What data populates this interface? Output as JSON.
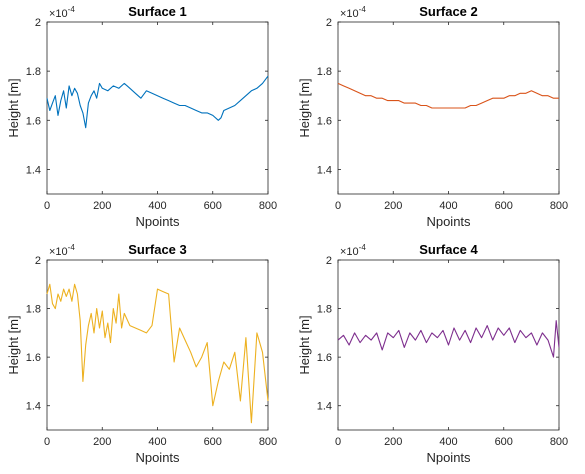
{
  "figure": {
    "tick_label_color": "#262626"
  },
  "chart_data": [
    {
      "type": "line",
      "title": "Surface 1",
      "xlabel": "Npoints",
      "ylabel": "Height [m]",
      "exponent_label": "×10",
      "exponent_power": "-4",
      "xlim": [
        0,
        800
      ],
      "ylim": [
        1.3,
        2.0
      ],
      "xticks": [
        "0",
        "200",
        "400",
        "600",
        "800"
      ],
      "yticks": [
        "1.4",
        "1.6",
        "1.8",
        "2"
      ],
      "ytick_values": [
        1.4,
        1.6,
        1.8,
        2.0
      ],
      "xtick_values": [
        0,
        200,
        400,
        600,
        800
      ],
      "color": "#0072BD",
      "series": [
        {
          "x": [
            0,
            10,
            20,
            30,
            40,
            50,
            60,
            70,
            80,
            90,
            100,
            110,
            120,
            130,
            140,
            150,
            160,
            170,
            180,
            190,
            200,
            220,
            240,
            260,
            280,
            300,
            320,
            340,
            360,
            380,
            400,
            420,
            440,
            460,
            480,
            500,
            520,
            540,
            560,
            580,
            600,
            620,
            630,
            640,
            660,
            680,
            700,
            720,
            740,
            760,
            780,
            800
          ],
          "y": [
            1.69,
            1.64,
            1.67,
            1.7,
            1.62,
            1.68,
            1.72,
            1.65,
            1.74,
            1.7,
            1.73,
            1.71,
            1.66,
            1.63,
            1.57,
            1.67,
            1.7,
            1.72,
            1.69,
            1.75,
            1.73,
            1.72,
            1.74,
            1.73,
            1.75,
            1.73,
            1.71,
            1.69,
            1.72,
            1.71,
            1.7,
            1.69,
            1.68,
            1.67,
            1.66,
            1.66,
            1.65,
            1.64,
            1.63,
            1.63,
            1.62,
            1.6,
            1.61,
            1.64,
            1.65,
            1.66,
            1.68,
            1.7,
            1.72,
            1.73,
            1.75,
            1.78
          ]
        }
      ]
    },
    {
      "type": "line",
      "title": "Surface 2",
      "xlabel": "Npoints",
      "ylabel": "Height [m]",
      "exponent_label": "×10",
      "exponent_power": "-4",
      "xlim": [
        0,
        800
      ],
      "ylim": [
        1.3,
        2.0
      ],
      "xticks": [
        "0",
        "200",
        "400",
        "600",
        "800"
      ],
      "yticks": [
        "1.4",
        "1.6",
        "1.8",
        "2"
      ],
      "ytick_values": [
        1.4,
        1.6,
        1.8,
        2.0
      ],
      "xtick_values": [
        0,
        200,
        400,
        600,
        800
      ],
      "color": "#D95319",
      "series": [
        {
          "x": [
            0,
            20,
            40,
            60,
            80,
            100,
            120,
            140,
            160,
            180,
            200,
            220,
            240,
            260,
            280,
            300,
            320,
            340,
            360,
            380,
            400,
            420,
            440,
            460,
            480,
            500,
            520,
            540,
            560,
            580,
            600,
            620,
            640,
            660,
            680,
            700,
            720,
            740,
            760,
            780,
            800
          ],
          "y": [
            1.75,
            1.74,
            1.73,
            1.72,
            1.71,
            1.7,
            1.7,
            1.69,
            1.69,
            1.68,
            1.68,
            1.68,
            1.67,
            1.67,
            1.67,
            1.66,
            1.66,
            1.65,
            1.65,
            1.65,
            1.65,
            1.65,
            1.65,
            1.65,
            1.66,
            1.66,
            1.67,
            1.68,
            1.69,
            1.69,
            1.69,
            1.7,
            1.7,
            1.71,
            1.71,
            1.72,
            1.71,
            1.7,
            1.7,
            1.69,
            1.69
          ]
        }
      ]
    },
    {
      "type": "line",
      "title": "Surface 3",
      "xlabel": "Npoints",
      "ylabel": "Height [m]",
      "exponent_label": "×10",
      "exponent_power": "-4",
      "xlim": [
        0,
        800
      ],
      "ylim": [
        1.3,
        2.0
      ],
      "xticks": [
        "0",
        "200",
        "400",
        "600",
        "800"
      ],
      "yticks": [
        "1.4",
        "1.6",
        "1.8",
        "2"
      ],
      "ytick_values": [
        1.4,
        1.6,
        1.8,
        2.0
      ],
      "xtick_values": [
        0,
        200,
        400,
        600,
        800
      ],
      "color": "#EDB120",
      "series": [
        {
          "x": [
            0,
            10,
            20,
            30,
            40,
            50,
            60,
            70,
            80,
            90,
            100,
            110,
            120,
            130,
            140,
            150,
            160,
            170,
            180,
            190,
            200,
            210,
            220,
            230,
            240,
            250,
            260,
            270,
            280,
            300,
            320,
            340,
            360,
            380,
            400,
            420,
            440,
            460,
            480,
            500,
            520,
            540,
            560,
            580,
            600,
            620,
            640,
            660,
            680,
            700,
            720,
            740,
            760,
            780,
            800
          ],
          "y": [
            1.86,
            1.9,
            1.82,
            1.8,
            1.86,
            1.83,
            1.88,
            1.85,
            1.88,
            1.83,
            1.9,
            1.86,
            1.75,
            1.5,
            1.65,
            1.73,
            1.78,
            1.7,
            1.8,
            1.72,
            1.79,
            1.68,
            1.74,
            1.66,
            1.8,
            1.74,
            1.86,
            1.72,
            1.78,
            1.73,
            1.72,
            1.71,
            1.7,
            1.73,
            1.88,
            1.87,
            1.86,
            1.58,
            1.72,
            1.67,
            1.62,
            1.56,
            1.6,
            1.66,
            1.4,
            1.5,
            1.58,
            1.55,
            1.62,
            1.42,
            1.68,
            1.33,
            1.7,
            1.62,
            1.42
          ]
        }
      ]
    },
    {
      "type": "line",
      "title": "Surface 4",
      "xlabel": "Npoints",
      "ylabel": "Height [m]",
      "exponent_label": "×10",
      "exponent_power": "-4",
      "xlim": [
        0,
        800
      ],
      "ylim": [
        1.3,
        2.0
      ],
      "xticks": [
        "0",
        "200",
        "400",
        "600",
        "800"
      ],
      "yticks": [
        "1.4",
        "1.6",
        "1.8",
        "2"
      ],
      "ytick_values": [
        1.4,
        1.6,
        1.8,
        2.0
      ],
      "xtick_values": [
        0,
        200,
        400,
        600,
        800
      ],
      "color": "#7E2F8E",
      "series": [
        {
          "x": [
            0,
            20,
            40,
            60,
            80,
            100,
            120,
            140,
            160,
            180,
            200,
            220,
            240,
            260,
            280,
            300,
            320,
            340,
            360,
            380,
            400,
            420,
            440,
            460,
            480,
            500,
            520,
            540,
            560,
            580,
            600,
            620,
            640,
            660,
            680,
            700,
            720,
            740,
            760,
            780,
            790,
            800
          ],
          "y": [
            1.67,
            1.69,
            1.65,
            1.7,
            1.66,
            1.69,
            1.67,
            1.7,
            1.63,
            1.7,
            1.68,
            1.71,
            1.64,
            1.7,
            1.67,
            1.71,
            1.66,
            1.7,
            1.68,
            1.71,
            1.65,
            1.72,
            1.67,
            1.71,
            1.66,
            1.72,
            1.68,
            1.73,
            1.67,
            1.72,
            1.69,
            1.72,
            1.66,
            1.71,
            1.68,
            1.7,
            1.65,
            1.7,
            1.67,
            1.6,
            1.75,
            1.64
          ]
        }
      ]
    }
  ]
}
